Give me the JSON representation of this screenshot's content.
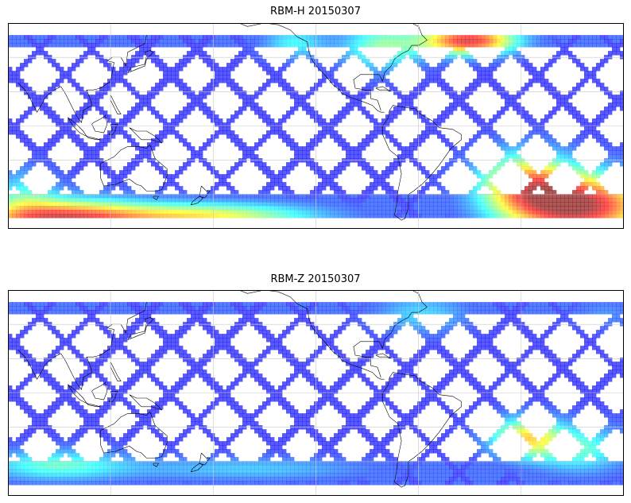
{
  "figure": {
    "panels": [
      {
        "title": "RBM-H 20150307",
        "variable": "RBM-H"
      },
      {
        "title": "RBM-Z 20150307",
        "variable": "RBM-Z"
      }
    ]
  },
  "map": {
    "projection": "equirectangular",
    "lon_range": [
      60,
      420
    ],
    "lat_range": [
      -60,
      60
    ],
    "data_lat_range": [
      -53,
      53
    ],
    "gridlines": true,
    "coastlines": true,
    "swath_pattern": "satellite ground tracks"
  },
  "colors": {
    "colormap": "jet",
    "low": "#6666ee",
    "mid": "#66e8f0",
    "high": "#e86060",
    "coast": "#000000",
    "grid": "#c8c8c8"
  }
}
